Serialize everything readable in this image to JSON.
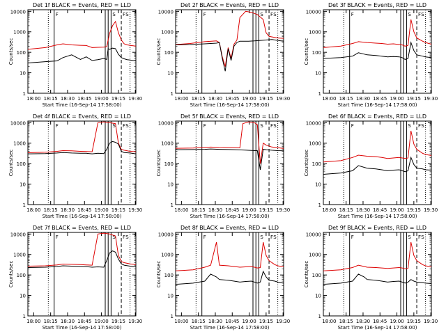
{
  "figure": {
    "xlabel": "Start Time (16-Sep-14 17:58:00)",
    "ylabel": "Counts/sec",
    "legend_text": "BLACK = Events, RED = LLD",
    "event_color": "#000000",
    "lld_color": "#dd0000",
    "x_tick_labels": [
      "18:00",
      "18:15",
      "18:30",
      "18:45",
      "19:00",
      "19:15",
      "19:30"
    ],
    "y_tick_labels": [
      "1",
      "10",
      "100",
      "1000",
      "10000"
    ],
    "flag_labels": [
      "F",
      "S",
      "F",
      "S"
    ]
  },
  "chart_data": [
    {
      "type": "line",
      "title": "Det 1f",
      "yscale": "log",
      "xlim_min": [
        0,
        37
      ],
      "ylim": [
        1,
        12000
      ],
      "events": [
        [
          0,
          30
        ],
        [
          6,
          35
        ],
        [
          10,
          38
        ],
        [
          12,
          55
        ],
        [
          15,
          75
        ],
        [
          18,
          45
        ],
        [
          20,
          60
        ],
        [
          22,
          40
        ],
        [
          24,
          44
        ],
        [
          26,
          50
        ],
        [
          27,
          45
        ],
        [
          27.5,
          150
        ],
        [
          28,
          140
        ],
        [
          29,
          160
        ],
        [
          30,
          150
        ],
        [
          31,
          80
        ],
        [
          32,
          55
        ],
        [
          33,
          48
        ],
        [
          34,
          44
        ],
        [
          35,
          42
        ],
        [
          36,
          40
        ],
        [
          37,
          38
        ]
      ],
      "lld": [
        [
          0,
          140
        ],
        [
          6,
          170
        ],
        [
          10,
          230
        ],
        [
          12,
          260
        ],
        [
          15,
          230
        ],
        [
          18,
          220
        ],
        [
          20,
          215
        ],
        [
          22,
          170
        ],
        [
          24,
          175
        ],
        [
          26,
          180
        ],
        [
          27,
          190
        ],
        [
          28,
          850
        ],
        [
          29,
          2000
        ],
        [
          30,
          3200
        ],
        [
          31,
          900
        ],
        [
          32,
          400
        ],
        [
          33,
          260
        ],
        [
          34,
          230
        ],
        [
          35,
          220
        ],
        [
          36,
          210
        ],
        [
          37,
          200
        ]
      ]
    },
    {
      "type": "line",
      "title": "Det 2f",
      "yscale": "log",
      "xlim_min": [
        0,
        37
      ],
      "ylim": [
        1,
        12000
      ],
      "events": [
        [
          0,
          230
        ],
        [
          5,
          240
        ],
        [
          10,
          260
        ],
        [
          14,
          280
        ],
        [
          15,
          300
        ],
        [
          16,
          50
        ],
        [
          17,
          12
        ],
        [
          18,
          150
        ],
        [
          19,
          40
        ],
        [
          20,
          200
        ],
        [
          21,
          300
        ],
        [
          22,
          350
        ],
        [
          25,
          350
        ],
        [
          27,
          360
        ],
        [
          29,
          380
        ],
        [
          31,
          400
        ],
        [
          33,
          420
        ],
        [
          35,
          380
        ],
        [
          37,
          350
        ]
      ],
      "lld": [
        [
          0,
          240
        ],
        [
          5,
          270
        ],
        [
          10,
          330
        ],
        [
          14,
          360
        ],
        [
          15,
          300
        ],
        [
          16,
          60
        ],
        [
          17,
          20
        ],
        [
          18,
          170
        ],
        [
          19,
          50
        ],
        [
          20,
          250
        ],
        [
          21,
          400
        ],
        [
          22,
          5000
        ],
        [
          24,
          10000
        ],
        [
          26,
          9000
        ],
        [
          28,
          7000
        ],
        [
          30,
          4000
        ],
        [
          31,
          900
        ],
        [
          32,
          600
        ],
        [
          35,
          500
        ],
        [
          37,
          480
        ]
      ]
    },
    {
      "type": "line",
      "title": "Det 3f",
      "yscale": "log",
      "xlim_min": [
        0,
        37
      ],
      "ylim": [
        1,
        12000
      ],
      "events": [
        [
          0,
          50
        ],
        [
          6,
          55
        ],
        [
          10,
          65
        ],
        [
          12,
          95
        ],
        [
          15,
          75
        ],
        [
          18,
          70
        ],
        [
          20,
          65
        ],
        [
          22,
          60
        ],
        [
          24,
          62
        ],
        [
          26,
          60
        ],
        [
          27,
          55
        ],
        [
          28,
          45
        ],
        [
          29,
          50
        ],
        [
          30,
          300
        ],
        [
          31,
          120
        ],
        [
          32,
          75
        ],
        [
          34,
          65
        ],
        [
          35,
          60
        ],
        [
          37,
          55
        ]
      ],
      "lld": [
        [
          0,
          170
        ],
        [
          6,
          200
        ],
        [
          10,
          270
        ],
        [
          12,
          330
        ],
        [
          15,
          300
        ],
        [
          18,
          280
        ],
        [
          20,
          270
        ],
        [
          22,
          250
        ],
        [
          24,
          260
        ],
        [
          26,
          240
        ],
        [
          27,
          230
        ],
        [
          28,
          200
        ],
        [
          29,
          220
        ],
        [
          30,
          4000
        ],
        [
          31,
          1000
        ],
        [
          32,
          500
        ],
        [
          34,
          350
        ],
        [
          35,
          300
        ],
        [
          37,
          250
        ]
      ]
    },
    {
      "type": "line",
      "title": "Det 4f",
      "yscale": "log",
      "xlim_min": [
        0,
        37
      ],
      "ylim": [
        1,
        12000
      ],
      "events": [
        [
          0,
          300
        ],
        [
          6,
          310
        ],
        [
          10,
          330
        ],
        [
          12,
          350
        ],
        [
          15,
          330
        ],
        [
          18,
          320
        ],
        [
          20,
          320
        ],
        [
          22,
          300
        ],
        [
          24,
          320
        ],
        [
          26,
          310
        ],
        [
          27,
          500
        ],
        [
          28,
          1000
        ],
        [
          29,
          1200
        ],
        [
          30,
          1100
        ],
        [
          31,
          900
        ],
        [
          32,
          400
        ],
        [
          33,
          350
        ],
        [
          35,
          330
        ],
        [
          37,
          300
        ]
      ],
      "lld": [
        [
          0,
          340
        ],
        [
          6,
          360
        ],
        [
          10,
          400
        ],
        [
          12,
          430
        ],
        [
          15,
          420
        ],
        [
          18,
          400
        ],
        [
          20,
          390
        ],
        [
          22,
          380
        ],
        [
          24,
          10000
        ],
        [
          26,
          11000
        ],
        [
          28,
          10000
        ],
        [
          30,
          9000
        ],
        [
          31,
          1000
        ],
        [
          32,
          500
        ],
        [
          33,
          450
        ],
        [
          35,
          400
        ],
        [
          37,
          380
        ]
      ]
    },
    {
      "type": "line",
      "title": "Det 5f",
      "yscale": "log",
      "xlim_min": [
        0,
        37
      ],
      "ylim": [
        1,
        12000
      ],
      "events": [
        [
          0,
          480
        ],
        [
          6,
          490
        ],
        [
          10,
          500
        ],
        [
          12,
          520
        ],
        [
          15,
          500
        ],
        [
          18,
          490
        ],
        [
          20,
          480
        ],
        [
          22,
          470
        ],
        [
          24,
          460
        ],
        [
          26,
          440
        ],
        [
          27,
          430
        ],
        [
          28,
          430
        ],
        [
          29,
          50
        ],
        [
          30,
          500
        ],
        [
          31,
          480
        ],
        [
          33,
          450
        ],
        [
          35,
          430
        ],
        [
          37,
          420
        ]
      ],
      "lld": [
        [
          0,
          560
        ],
        [
          6,
          580
        ],
        [
          10,
          620
        ],
        [
          12,
          640
        ],
        [
          15,
          620
        ],
        [
          18,
          610
        ],
        [
          20,
          600
        ],
        [
          22,
          590
        ],
        [
          23,
          9000
        ],
        [
          25,
          11000
        ],
        [
          27,
          10000
        ],
        [
          28,
          8000
        ],
        [
          29,
          100
        ],
        [
          30,
          1000
        ],
        [
          31,
          800
        ],
        [
          33,
          650
        ],
        [
          35,
          600
        ],
        [
          37,
          550
        ]
      ]
    },
    {
      "type": "line",
      "title": "Det 6f",
      "yscale": "log",
      "xlim_min": [
        0,
        37
      ],
      "ylim": [
        1,
        12000
      ],
      "events": [
        [
          0,
          30
        ],
        [
          6,
          35
        ],
        [
          10,
          45
        ],
        [
          12,
          80
        ],
        [
          15,
          60
        ],
        [
          18,
          55
        ],
        [
          20,
          50
        ],
        [
          22,
          45
        ],
        [
          24,
          48
        ],
        [
          26,
          50
        ],
        [
          27,
          45
        ],
        [
          28,
          40
        ],
        [
          29,
          45
        ],
        [
          30,
          200
        ],
        [
          31,
          90
        ],
        [
          32,
          60
        ],
        [
          34,
          55
        ],
        [
          35,
          50
        ],
        [
          37,
          48
        ]
      ],
      "lld": [
        [
          0,
          120
        ],
        [
          6,
          140
        ],
        [
          10,
          200
        ],
        [
          12,
          260
        ],
        [
          15,
          230
        ],
        [
          18,
          220
        ],
        [
          20,
          200
        ],
        [
          22,
          180
        ],
        [
          24,
          190
        ],
        [
          26,
          200
        ],
        [
          27,
          190
        ],
        [
          28,
          180
        ],
        [
          29,
          190
        ],
        [
          30,
          4000
        ],
        [
          31,
          900
        ],
        [
          32,
          500
        ],
        [
          34,
          320
        ],
        [
          35,
          280
        ],
        [
          37,
          250
        ]
      ]
    },
    {
      "type": "line",
      "title": "Det 7f",
      "yscale": "log",
      "xlim_min": [
        0,
        37
      ],
      "ylim": [
        1,
        12000
      ],
      "events": [
        [
          0,
          230
        ],
        [
          6,
          240
        ],
        [
          10,
          260
        ],
        [
          12,
          280
        ],
        [
          15,
          270
        ],
        [
          18,
          260
        ],
        [
          20,
          255
        ],
        [
          22,
          240
        ],
        [
          24,
          250
        ],
        [
          26,
          240
        ],
        [
          27,
          500
        ],
        [
          28,
          1200
        ],
        [
          29,
          1500
        ],
        [
          30,
          1300
        ],
        [
          31,
          600
        ],
        [
          32,
          350
        ],
        [
          33,
          300
        ],
        [
          35,
          270
        ],
        [
          37,
          250
        ]
      ],
      "lld": [
        [
          0,
          270
        ],
        [
          6,
          280
        ],
        [
          10,
          310
        ],
        [
          12,
          340
        ],
        [
          15,
          330
        ],
        [
          18,
          320
        ],
        [
          20,
          310
        ],
        [
          22,
          300
        ],
        [
          24,
          10000
        ],
        [
          26,
          11000
        ],
        [
          28,
          10000
        ],
        [
          30,
          8000
        ],
        [
          31,
          900
        ],
        [
          32,
          450
        ],
        [
          33,
          400
        ],
        [
          35,
          350
        ],
        [
          37,
          320
        ]
      ]
    },
    {
      "type": "line",
      "title": "Det 8f",
      "yscale": "log",
      "xlim_min": [
        0,
        37
      ],
      "ylim": [
        1,
        12000
      ],
      "events": [
        [
          0,
          35
        ],
        [
          6,
          40
        ],
        [
          10,
          50
        ],
        [
          12,
          110
        ],
        [
          14,
          80
        ],
        [
          15,
          60
        ],
        [
          18,
          55
        ],
        [
          20,
          50
        ],
        [
          22,
          45
        ],
        [
          24,
          48
        ],
        [
          26,
          50
        ],
        [
          27,
          45
        ],
        [
          28,
          40
        ],
        [
          29,
          45
        ],
        [
          30,
          150
        ],
        [
          31,
          80
        ],
        [
          32,
          55
        ],
        [
          34,
          50
        ],
        [
          35,
          45
        ],
        [
          37,
          40
        ]
      ],
      "lld": [
        [
          0,
          160
        ],
        [
          6,
          180
        ],
        [
          10,
          240
        ],
        [
          12,
          300
        ],
        [
          14,
          4000
        ],
        [
          15,
          300
        ],
        [
          18,
          280
        ],
        [
          20,
          260
        ],
        [
          22,
          240
        ],
        [
          24,
          250
        ],
        [
          26,
          260
        ],
        [
          27,
          240
        ],
        [
          28,
          220
        ],
        [
          29,
          230
        ],
        [
          30,
          4000
        ],
        [
          31,
          900
        ],
        [
          32,
          500
        ],
        [
          34,
          320
        ],
        [
          35,
          280
        ],
        [
          37,
          250
        ]
      ]
    },
    {
      "type": "line",
      "title": "Det 9f",
      "yscale": "log",
      "xlim_min": [
        0,
        37
      ],
      "ylim": [
        1,
        12000
      ],
      "events": [
        [
          0,
          35
        ],
        [
          6,
          40
        ],
        [
          10,
          50
        ],
        [
          12,
          110
        ],
        [
          14,
          80
        ],
        [
          15,
          60
        ],
        [
          18,
          55
        ],
        [
          20,
          50
        ],
        [
          22,
          45
        ],
        [
          24,
          48
        ],
        [
          26,
          50
        ],
        [
          27,
          45
        ],
        [
          28,
          40
        ],
        [
          29,
          45
        ],
        [
          30,
          60
        ],
        [
          31,
          50
        ],
        [
          32,
          45
        ],
        [
          34,
          42
        ],
        [
          35,
          40
        ],
        [
          37,
          38
        ]
      ],
      "lld": [
        [
          0,
          160
        ],
        [
          6,
          180
        ],
        [
          10,
          230
        ],
        [
          12,
          300
        ],
        [
          14,
          260
        ],
        [
          15,
          240
        ],
        [
          18,
          230
        ],
        [
          20,
          220
        ],
        [
          22,
          210
        ],
        [
          24,
          220
        ],
        [
          26,
          230
        ],
        [
          27,
          220
        ],
        [
          28,
          200
        ],
        [
          29,
          210
        ],
        [
          30,
          4000
        ],
        [
          31,
          900
        ],
        [
          32,
          500
        ],
        [
          34,
          320
        ],
        [
          35,
          280
        ],
        [
          37,
          250
        ]
      ]
    }
  ]
}
